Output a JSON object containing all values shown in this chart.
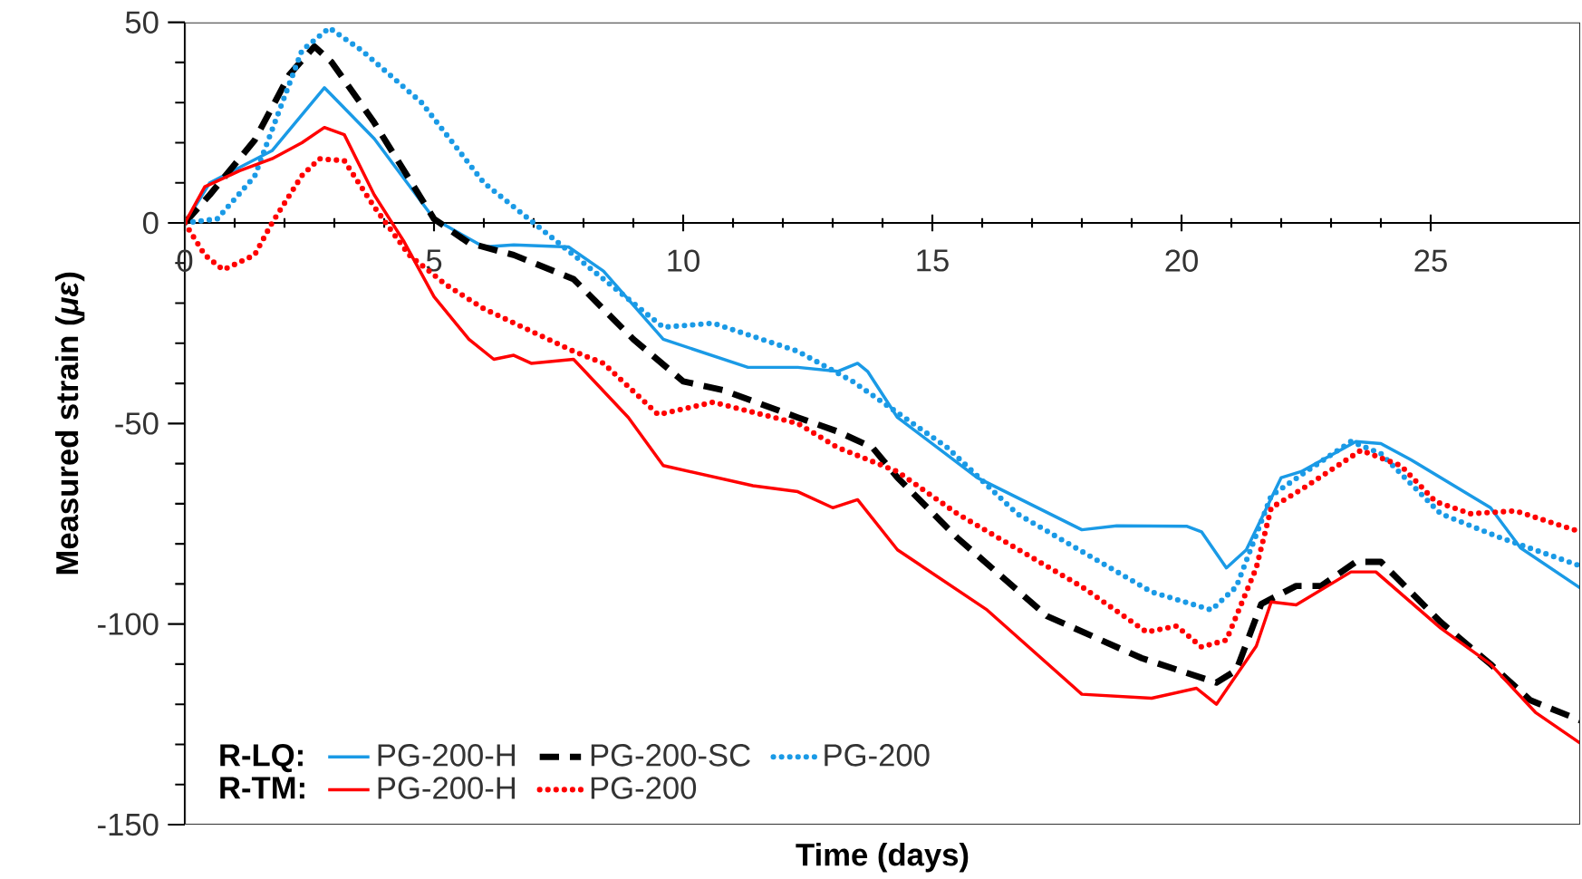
{
  "chart_data": {
    "type": "line",
    "xlabel": "Time (days)",
    "ylabel": "Measured strain (*με*)",
    "xlim": [
      0,
      28
    ],
    "ylim": [
      -150,
      50
    ],
    "xticks": [
      0,
      5,
      10,
      15,
      20,
      25
    ],
    "yticks": [
      -150,
      -100,
      -50,
      0,
      50
    ],
    "legend": "bottom left",
    "marker": "none",
    "grid": false,
    "annotations": [
      "R-LQ:",
      "R-TM:"
    ],
    "series": [
      {
        "name": "PG-200-H",
        "color": "#1a9ae6",
        "line_style": "solid",
        "x": [
          0,
          0.5,
          1.75,
          2.8,
          3.8,
          5,
          6,
          6.6,
          7.7,
          8.4,
          9.6,
          11.3,
          12.3,
          13.1,
          13.5,
          13.7,
          14.3,
          15.9,
          18,
          18.7,
          20.1,
          20.4,
          20.9,
          21.3,
          22,
          22.4,
          23.5,
          24,
          24.6,
          26.2,
          26.8,
          28
        ],
        "values": [
          0,
          10,
          18,
          33.7,
          21,
          1,
          -6,
          -5.5,
          -6,
          -12,
          -29,
          -36,
          -36,
          -37,
          -35,
          -37,
          -48.5,
          -63.5,
          -76.5,
          -75.5,
          -75.6,
          -77,
          -86,
          -81.5,
          -63.5,
          -62,
          -54.5,
          -55,
          -59,
          -71,
          -81,
          -91
        ]
      },
      {
        "name": "PG-200-SC",
        "color": "#000000",
        "line_style": "dashed",
        "x": [
          0,
          0.5,
          1.4,
          2.1,
          2.6,
          2.95,
          3.8,
          5,
          5.7,
          6.6,
          7.8,
          9,
          10,
          10.8,
          12.3,
          13.1,
          13.8,
          14.3,
          15.5,
          17.3,
          19.2,
          20.7,
          21.1,
          21.6,
          22.3,
          22.8,
          23.5,
          24,
          25.2,
          26.2,
          27,
          28
        ],
        "values": [
          0,
          7,
          20.6,
          37,
          44,
          40,
          25,
          1,
          -5,
          -8,
          -14,
          -29,
          -39.5,
          -41.7,
          -48.5,
          -52,
          -56,
          -63.5,
          -78.5,
          -98,
          -108.5,
          -114.6,
          -111.5,
          -95,
          -90.5,
          -90.5,
          -84.5,
          -84.5,
          -99.5,
          -110,
          -119,
          -124
        ]
      },
      {
        "name": "PG-200",
        "color": "#1a9ae6",
        "line_style": "dotted",
        "x": [
          0,
          0.65,
          1.4,
          2.35,
          2.9,
          3.55,
          4.75,
          6,
          6.9,
          7.8,
          9,
          9.6,
          10.6,
          12.3,
          13.4,
          15.3,
          16.7,
          19.4,
          20.6,
          21.1,
          21.8,
          22.5,
          23.4,
          24,
          25.2,
          26.4,
          28
        ],
        "values": [
          0,
          1,
          11.6,
          43,
          48.6,
          43,
          30,
          10,
          1,
          -8,
          -20,
          -26,
          -25,
          -32,
          -39.5,
          -56,
          -72.5,
          -92,
          -96.5,
          -90.7,
          -68,
          -62,
          -54.5,
          -57.5,
          -72.5,
          -78.5,
          -85.5
        ]
      },
      {
        "name": "PG-200-H",
        "color": "#ff0000",
        "line_style": "solid",
        "x": [
          0,
          0.4,
          1.1,
          1.75,
          2.35,
          2.8,
          3.2,
          3.8,
          4.4,
          5,
          5.7,
          6.2,
          6.6,
          6.95,
          7.8,
          8.9,
          9.6,
          11.4,
          12.3,
          13,
          13.5,
          14.3,
          16.1,
          18,
          19.4,
          20.3,
          20.7,
          21.5,
          21.8,
          22.3,
          23.4,
          23.9,
          25.2,
          26.2,
          27.1,
          28
        ],
        "values": [
          0,
          9,
          13,
          16,
          20,
          23.8,
          22,
          7,
          -4.7,
          -18.4,
          -29,
          -34,
          -33,
          -35,
          -34,
          -48.5,
          -60.5,
          -65.5,
          -67,
          -71,
          -69,
          -81.5,
          -96.5,
          -117.5,
          -118.5,
          -116,
          -120,
          -105.5,
          -94.5,
          -95.2,
          -87,
          -87,
          -101,
          -110,
          -122,
          -129.7
        ]
      },
      {
        "name": "PG-200",
        "color": "#ff0000",
        "line_style": "dotted",
        "x": [
          0,
          0.4,
          0.77,
          1.4,
          1.75,
          2.35,
          2.7,
          3.2,
          3.8,
          4.5,
          5.25,
          6,
          7.8,
          8.4,
          9.5,
          10.6,
          12.3,
          13.1,
          14.3,
          15.5,
          18,
          19.3,
          19.9,
          20.4,
          20.9,
          21.5,
          21.8,
          22.4,
          23.6,
          24.4,
          25.1,
          25.8,
          26.7,
          28
        ],
        "values": [
          0,
          -8,
          -11.7,
          -8,
          0,
          11.8,
          16,
          15.5,
          4,
          -8,
          -15.5,
          -21.4,
          -32,
          -35,
          -47.8,
          -44.7,
          -50,
          -56,
          -62,
          -72.5,
          -90.7,
          -102,
          -100.5,
          -105.7,
          -104,
          -86,
          -71,
          -66.5,
          -56.7,
          -60.5,
          -69.5,
          -72.5,
          -71.8,
          -77
        ]
      }
    ]
  }
}
